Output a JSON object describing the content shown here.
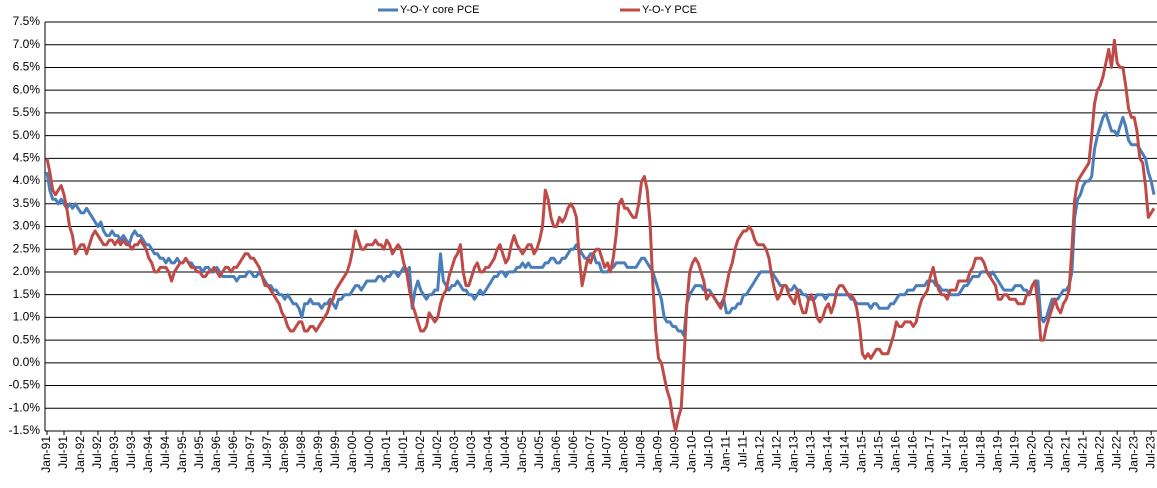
{
  "chart_data": {
    "type": "line",
    "categories": [
      "Jan-91",
      null,
      null,
      null,
      null,
      null,
      "Jul-91",
      null,
      null,
      null,
      null,
      null,
      "Jan-92",
      null,
      null,
      null,
      null,
      null,
      "Jul-92",
      null,
      null,
      null,
      null,
      null,
      "Jan-93",
      null,
      null,
      null,
      null,
      null,
      "Jul-93",
      null,
      null,
      null,
      null,
      null,
      "Jan-94",
      null,
      null,
      null,
      null,
      null,
      "Jul-94",
      null,
      null,
      null,
      null,
      null,
      "Jan-95",
      null,
      null,
      null,
      null,
      null,
      "Jul-95",
      null,
      null,
      null,
      null,
      null,
      "Jan-96",
      null,
      null,
      null,
      null,
      null,
      "Jul-96",
      null,
      null,
      null,
      null,
      null,
      "Jan-97",
      null,
      null,
      null,
      null,
      null,
      "Jul-97",
      null,
      null,
      null,
      null,
      null,
      "Jan-98",
      null,
      null,
      null,
      null,
      null,
      "Jul-98",
      null,
      null,
      null,
      null,
      null,
      "Jan-99",
      null,
      null,
      null,
      null,
      null,
      "Jul-99",
      null,
      null,
      null,
      null,
      null,
      "Jan-00",
      null,
      null,
      null,
      null,
      null,
      "Jul-00",
      null,
      null,
      null,
      null,
      null,
      "Jan-01",
      null,
      null,
      null,
      null,
      null,
      "Jul-01",
      null,
      null,
      null,
      null,
      null,
      "Jan-02",
      null,
      null,
      null,
      null,
      null,
      "Jul-02",
      null,
      null,
      null,
      null,
      null,
      "Jan-03",
      null,
      null,
      null,
      null,
      null,
      "Jul-03",
      null,
      null,
      null,
      null,
      null,
      "Jan-04",
      null,
      null,
      null,
      null,
      null,
      "Jul-04",
      null,
      null,
      null,
      null,
      null,
      "Jan-05",
      null,
      null,
      null,
      null,
      null,
      "Jul-05",
      null,
      null,
      null,
      null,
      null,
      "Jan-06",
      null,
      null,
      null,
      null,
      null,
      "Jul-06",
      null,
      null,
      null,
      null,
      null,
      "Jan-07",
      null,
      null,
      null,
      null,
      null,
      "Jul-07",
      null,
      null,
      null,
      null,
      null,
      "Jan-08",
      null,
      null,
      null,
      null,
      null,
      "Jul-08",
      null,
      null,
      null,
      null,
      null,
      "Jan-09",
      null,
      null,
      null,
      null,
      null,
      "Jul-09",
      null,
      null,
      null,
      null,
      null,
      "Jan-10",
      null,
      null,
      null,
      null,
      null,
      "Jul-10",
      null,
      null,
      null,
      null,
      null,
      "Jan-11",
      null,
      null,
      null,
      null,
      null,
      "Jul-11",
      null,
      null,
      null,
      null,
      null,
      "Jan-12",
      null,
      null,
      null,
      null,
      null,
      "Jul-12",
      null,
      null,
      null,
      null,
      null,
      "Jan-13",
      null,
      null,
      null,
      null,
      null,
      "Jul-13",
      null,
      null,
      null,
      null,
      null,
      "Jan-14",
      null,
      null,
      null,
      null,
      null,
      "Jul-14",
      null,
      null,
      null,
      null,
      null,
      "Jan-15",
      null,
      null,
      null,
      null,
      null,
      "Jul-15",
      null,
      null,
      null,
      null,
      null,
      "Jan-16",
      null,
      null,
      null,
      null,
      null,
      "Jul-16",
      null,
      null,
      null,
      null,
      null,
      "Jan-17",
      null,
      null,
      null,
      null,
      null,
      "Jul-17",
      null,
      null,
      null,
      null,
      null,
      "Jan-18",
      null,
      null,
      null,
      null,
      null,
      "Jul-18",
      null,
      null,
      null,
      null,
      null,
      "Jan-19",
      null,
      null,
      null,
      null,
      null,
      "Jul-19",
      null,
      null,
      null,
      null,
      null,
      "Jan-20",
      null,
      null,
      null,
      null,
      null,
      "Jul-20",
      null,
      null,
      null,
      null,
      null,
      "Jan-21",
      null,
      null,
      null,
      null,
      null,
      "Jul-21",
      null,
      null,
      null,
      null,
      null,
      "Jan-22",
      null,
      null,
      null,
      null,
      null,
      "Jul-22",
      null,
      null,
      null,
      null,
      null,
      "Jan-23",
      null,
      null,
      null,
      null,
      null,
      "Jul-23",
      null
    ],
    "series": [
      {
        "name": "Y-O-Y core PCE",
        "color": "#4a7ebb",
        "values": [
          4.2,
          3.8,
          3.6,
          3.6,
          3.5,
          3.6,
          3.5,
          3.4,
          3.5,
          3.4,
          3.5,
          3.4,
          3.3,
          3.3,
          3.4,
          3.3,
          3.2,
          3.1,
          3.0,
          3.1,
          2.9,
          2.8,
          2.8,
          2.9,
          2.8,
          2.8,
          2.7,
          2.8,
          2.7,
          2.6,
          2.8,
          2.9,
          2.8,
          2.8,
          2.7,
          2.6,
          2.6,
          2.5,
          2.4,
          2.4,
          2.3,
          2.3,
          2.2,
          2.3,
          2.2,
          2.2,
          2.3,
          2.2,
          2.2,
          2.3,
          2.2,
          2.2,
          2.1,
          2.1,
          2.1,
          2.0,
          2.1,
          2.1,
          2.0,
          2.0,
          2.1,
          2.0,
          1.9,
          1.9,
          1.9,
          1.9,
          1.9,
          1.8,
          1.9,
          1.9,
          1.9,
          2.0,
          2.0,
          1.9,
          1.9,
          2.0,
          1.9,
          1.8,
          1.7,
          1.7,
          1.6,
          1.6,
          1.5,
          1.5,
          1.4,
          1.5,
          1.4,
          1.3,
          1.3,
          1.2,
          1.0,
          1.3,
          1.3,
          1.4,
          1.3,
          1.3,
          1.3,
          1.2,
          1.3,
          1.3,
          1.4,
          1.3,
          1.2,
          1.4,
          1.4,
          1.5,
          1.5,
          1.5,
          1.6,
          1.7,
          1.7,
          1.6,
          1.7,
          1.8,
          1.8,
          1.8,
          1.8,
          1.9,
          1.9,
          1.8,
          1.9,
          1.9,
          2.0,
          2.0,
          1.9,
          2.0,
          2.1,
          2.0,
          2.1,
          1.2,
          1.6,
          1.8,
          1.6,
          1.5,
          1.4,
          1.5,
          1.5,
          1.6,
          1.6,
          2.4,
          1.8,
          1.7,
          1.6,
          1.7,
          1.7,
          1.8,
          1.7,
          1.6,
          1.6,
          1.5,
          1.5,
          1.4,
          1.5,
          1.6,
          1.5,
          1.6,
          1.7,
          1.8,
          1.9,
          1.9,
          2.0,
          2.0,
          1.9,
          2.0,
          2.0,
          2.0,
          2.1,
          2.1,
          2.2,
          2.1,
          2.2,
          2.1,
          2.1,
          2.1,
          2.1,
          2.1,
          2.2,
          2.2,
          2.3,
          2.3,
          2.2,
          2.2,
          2.3,
          2.3,
          2.4,
          2.5,
          2.5,
          2.6,
          2.5,
          2.4,
          2.3,
          2.3,
          2.4,
          2.4,
          2.2,
          2.2,
          2.0,
          2.0,
          2.0,
          2.1,
          2.1,
          2.2,
          2.2,
          2.2,
          2.2,
          2.1,
          2.1,
          2.1,
          2.1,
          2.2,
          2.3,
          2.3,
          2.2,
          2.1,
          2.0,
          1.8,
          1.6,
          1.4,
          1.0,
          0.9,
          0.9,
          0.8,
          0.8,
          0.7,
          0.7,
          0.6,
          1.3,
          1.5,
          1.6,
          1.7,
          1.7,
          1.7,
          1.6,
          1.6,
          1.6,
          1.5,
          1.4,
          1.3,
          1.3,
          1.4,
          1.1,
          1.1,
          1.2,
          1.2,
          1.3,
          1.3,
          1.5,
          1.5,
          1.6,
          1.7,
          1.8,
          1.9,
          2.0,
          2.0,
          2.0,
          2.0,
          2.0,
          1.9,
          1.8,
          1.7,
          1.7,
          1.7,
          1.6,
          1.6,
          1.7,
          1.6,
          1.6,
          1.5,
          1.5,
          1.4,
          1.4,
          1.4,
          1.5,
          1.5,
          1.5,
          1.4,
          1.5,
          1.5,
          1.5,
          1.5,
          1.5,
          1.5,
          1.5,
          1.5,
          1.4,
          1.4,
          1.3,
          1.3,
          1.3,
          1.3,
          1.3,
          1.2,
          1.3,
          1.3,
          1.2,
          1.2,
          1.2,
          1.2,
          1.3,
          1.3,
          1.4,
          1.5,
          1.5,
          1.5,
          1.6,
          1.6,
          1.6,
          1.7,
          1.7,
          1.7,
          1.7,
          1.8,
          1.8,
          1.8,
          1.7,
          1.7,
          1.6,
          1.6,
          1.6,
          1.5,
          1.5,
          1.5,
          1.5,
          1.6,
          1.7,
          1.7,
          1.8,
          1.9,
          1.9,
          1.9,
          2.0,
          2.0,
          2.0,
          1.9,
          2.0,
          1.9,
          1.8,
          1.7,
          1.6,
          1.6,
          1.6,
          1.6,
          1.7,
          1.7,
          1.7,
          1.6,
          1.6,
          1.5,
          1.7,
          1.8,
          1.8,
          1.0,
          0.9,
          1.0,
          1.2,
          1.4,
          1.4,
          1.4,
          1.5,
          1.6,
          1.6,
          1.7,
          2.0,
          3.2,
          3.6,
          3.7,
          3.9,
          4.0,
          4.0,
          4.1,
          4.7,
          5.0,
          5.2,
          5.4,
          5.5,
          5.3,
          5.1,
          5.1,
          5.0,
          5.2,
          5.4,
          5.2,
          4.9,
          4.8,
          4.8,
          4.8,
          4.7,
          4.6,
          4.5,
          4.2,
          4.0,
          3.7
        ]
      },
      {
        "name": "Y-O-Y PCE",
        "color": "#be4b48",
        "values": [
          4.5,
          4.2,
          3.8,
          3.7,
          3.8,
          3.9,
          3.7,
          3.4,
          3.0,
          2.8,
          2.4,
          2.5,
          2.6,
          2.6,
          2.4,
          2.6,
          2.8,
          2.9,
          2.8,
          2.7,
          2.6,
          2.6,
          2.7,
          2.7,
          2.6,
          2.7,
          2.6,
          2.7,
          2.6,
          2.6,
          2.5,
          2.6,
          2.6,
          2.7,
          2.6,
          2.5,
          2.3,
          2.2,
          2.0,
          2.0,
          2.1,
          2.1,
          2.1,
          2.0,
          1.8,
          2.0,
          2.1,
          2.2,
          2.2,
          2.3,
          2.2,
          2.1,
          2.1,
          2.0,
          2.0,
          1.9,
          1.9,
          2.0,
          2.0,
          2.1,
          2.0,
          1.9,
          2.0,
          2.1,
          2.1,
          2.0,
          2.1,
          2.1,
          2.2,
          2.3,
          2.4,
          2.4,
          2.3,
          2.3,
          2.2,
          2.1,
          1.9,
          1.7,
          1.7,
          1.6,
          1.5,
          1.4,
          1.3,
          1.1,
          1.0,
          0.8,
          0.7,
          0.7,
          0.8,
          0.9,
          0.9,
          0.7,
          0.7,
          0.8,
          0.8,
          0.7,
          0.8,
          0.9,
          1.0,
          1.1,
          1.3,
          1.4,
          1.6,
          1.7,
          1.8,
          1.9,
          2.0,
          2.2,
          2.5,
          2.9,
          2.7,
          2.5,
          2.5,
          2.6,
          2.6,
          2.6,
          2.7,
          2.6,
          2.6,
          2.5,
          2.7,
          2.6,
          2.4,
          2.5,
          2.6,
          2.5,
          2.2,
          2.0,
          1.6,
          1.3,
          1.1,
          0.9,
          0.7,
          0.7,
          0.8,
          1.1,
          1.0,
          0.9,
          1.0,
          1.3,
          1.5,
          1.6,
          1.9,
          2.1,
          2.3,
          2.4,
          2.6,
          2.0,
          1.7,
          1.7,
          1.9,
          2.1,
          2.2,
          2.0,
          2.0,
          2.1,
          2.1,
          2.2,
          2.3,
          2.5,
          2.6,
          2.4,
          2.2,
          2.3,
          2.6,
          2.8,
          2.6,
          2.5,
          2.4,
          2.5,
          2.6,
          2.6,
          2.4,
          2.5,
          2.7,
          3.0,
          3.8,
          3.6,
          3.2,
          3.0,
          3.0,
          3.2,
          3.1,
          3.2,
          3.4,
          3.5,
          3.4,
          3.2,
          2.3,
          1.7,
          2.0,
          2.3,
          2.2,
          2.4,
          2.5,
          2.5,
          2.3,
          2.1,
          2.2,
          2.0,
          2.3,
          2.8,
          3.5,
          3.6,
          3.4,
          3.4,
          3.3,
          3.2,
          3.2,
          3.5,
          4.0,
          4.1,
          3.8,
          3.1,
          1.7,
          0.7,
          0.1,
          0.0,
          -0.3,
          -0.6,
          -0.8,
          -1.2,
          -1.5,
          -1.2,
          -1.0,
          0.1,
          1.3,
          2.0,
          2.2,
          2.3,
          2.2,
          2.0,
          1.8,
          1.4,
          1.5,
          1.5,
          1.4,
          1.3,
          1.2,
          1.4,
          1.7,
          2.0,
          2.2,
          2.5,
          2.7,
          2.8,
          2.9,
          2.9,
          3.0,
          2.9,
          2.7,
          2.6,
          2.6,
          2.6,
          2.5,
          2.3,
          1.9,
          1.6,
          1.4,
          1.5,
          1.7,
          1.7,
          1.5,
          1.4,
          1.3,
          1.6,
          1.3,
          1.1,
          1.1,
          1.4,
          1.5,
          1.3,
          1.0,
          0.9,
          1.0,
          1.2,
          1.3,
          1.1,
          1.3,
          1.6,
          1.7,
          1.7,
          1.6,
          1.5,
          1.5,
          1.4,
          1.2,
          0.8,
          0.2,
          0.1,
          0.2,
          0.1,
          0.2,
          0.3,
          0.3,
          0.2,
          0.2,
          0.2,
          0.4,
          0.6,
          0.9,
          0.8,
          0.8,
          0.9,
          0.9,
          0.9,
          0.8,
          0.9,
          1.2,
          1.4,
          1.5,
          1.6,
          1.9,
          2.1,
          1.8,
          1.6,
          1.5,
          1.5,
          1.4,
          1.6,
          1.6,
          1.6,
          1.8,
          1.8,
          1.8,
          1.8,
          2.0,
          2.1,
          2.3,
          2.3,
          2.3,
          2.2,
          2.0,
          1.9,
          1.8,
          1.7,
          1.4,
          1.4,
          1.5,
          1.5,
          1.4,
          1.4,
          1.4,
          1.3,
          1.3,
          1.3,
          1.5,
          1.5,
          1.7,
          1.8,
          1.3,
          0.5,
          0.5,
          0.8,
          1.0,
          1.2,
          1.4,
          1.2,
          1.1,
          1.3,
          1.4,
          1.6,
          2.5,
          3.6,
          4.0,
          4.1,
          4.2,
          4.3,
          4.4,
          5.0,
          5.7,
          6.0,
          6.1,
          6.3,
          6.6,
          6.9,
          6.5,
          7.1,
          6.6,
          6.5,
          6.5,
          6.1,
          5.6,
          5.4,
          5.4,
          5.1,
          4.5,
          4.4,
          3.9,
          3.2,
          3.3,
          3.4
        ]
      }
    ],
    "ylim": [
      -1.5,
      7.5
    ],
    "yticks": [
      {
        "value": -1.5,
        "label": "-1.5%"
      },
      {
        "value": -1,
        "label": "-1.0%"
      },
      {
        "value": -0.5,
        "label": "-0.5%"
      },
      {
        "value": 0,
        "label": "0.0%"
      },
      {
        "value": 0.5,
        "label": "0.5%"
      },
      {
        "value": 1,
        "label": "1.0%"
      },
      {
        "value": 1.5,
        "label": "1.5%"
      },
      {
        "value": 2,
        "label": "2.0%"
      },
      {
        "value": 2.5,
        "label": "2.5%"
      },
      {
        "value": 3,
        "label": "3.0%"
      },
      {
        "value": 3.5,
        "label": "3.5%"
      },
      {
        "value": 4,
        "label": "4.0%"
      },
      {
        "value": 4.5,
        "label": "4.5%"
      },
      {
        "value": 5,
        "label": "5.0%"
      },
      {
        "value": 5.5,
        "label": "5.5%"
      },
      {
        "value": 6,
        "label": "6.0%"
      },
      {
        "value": 6.5,
        "label": "6.5%"
      },
      {
        "value": 7,
        "label": "7.0%"
      },
      {
        "value": 7.5,
        "label": "7.5%"
      }
    ],
    "grid": true,
    "legend": "top"
  }
}
